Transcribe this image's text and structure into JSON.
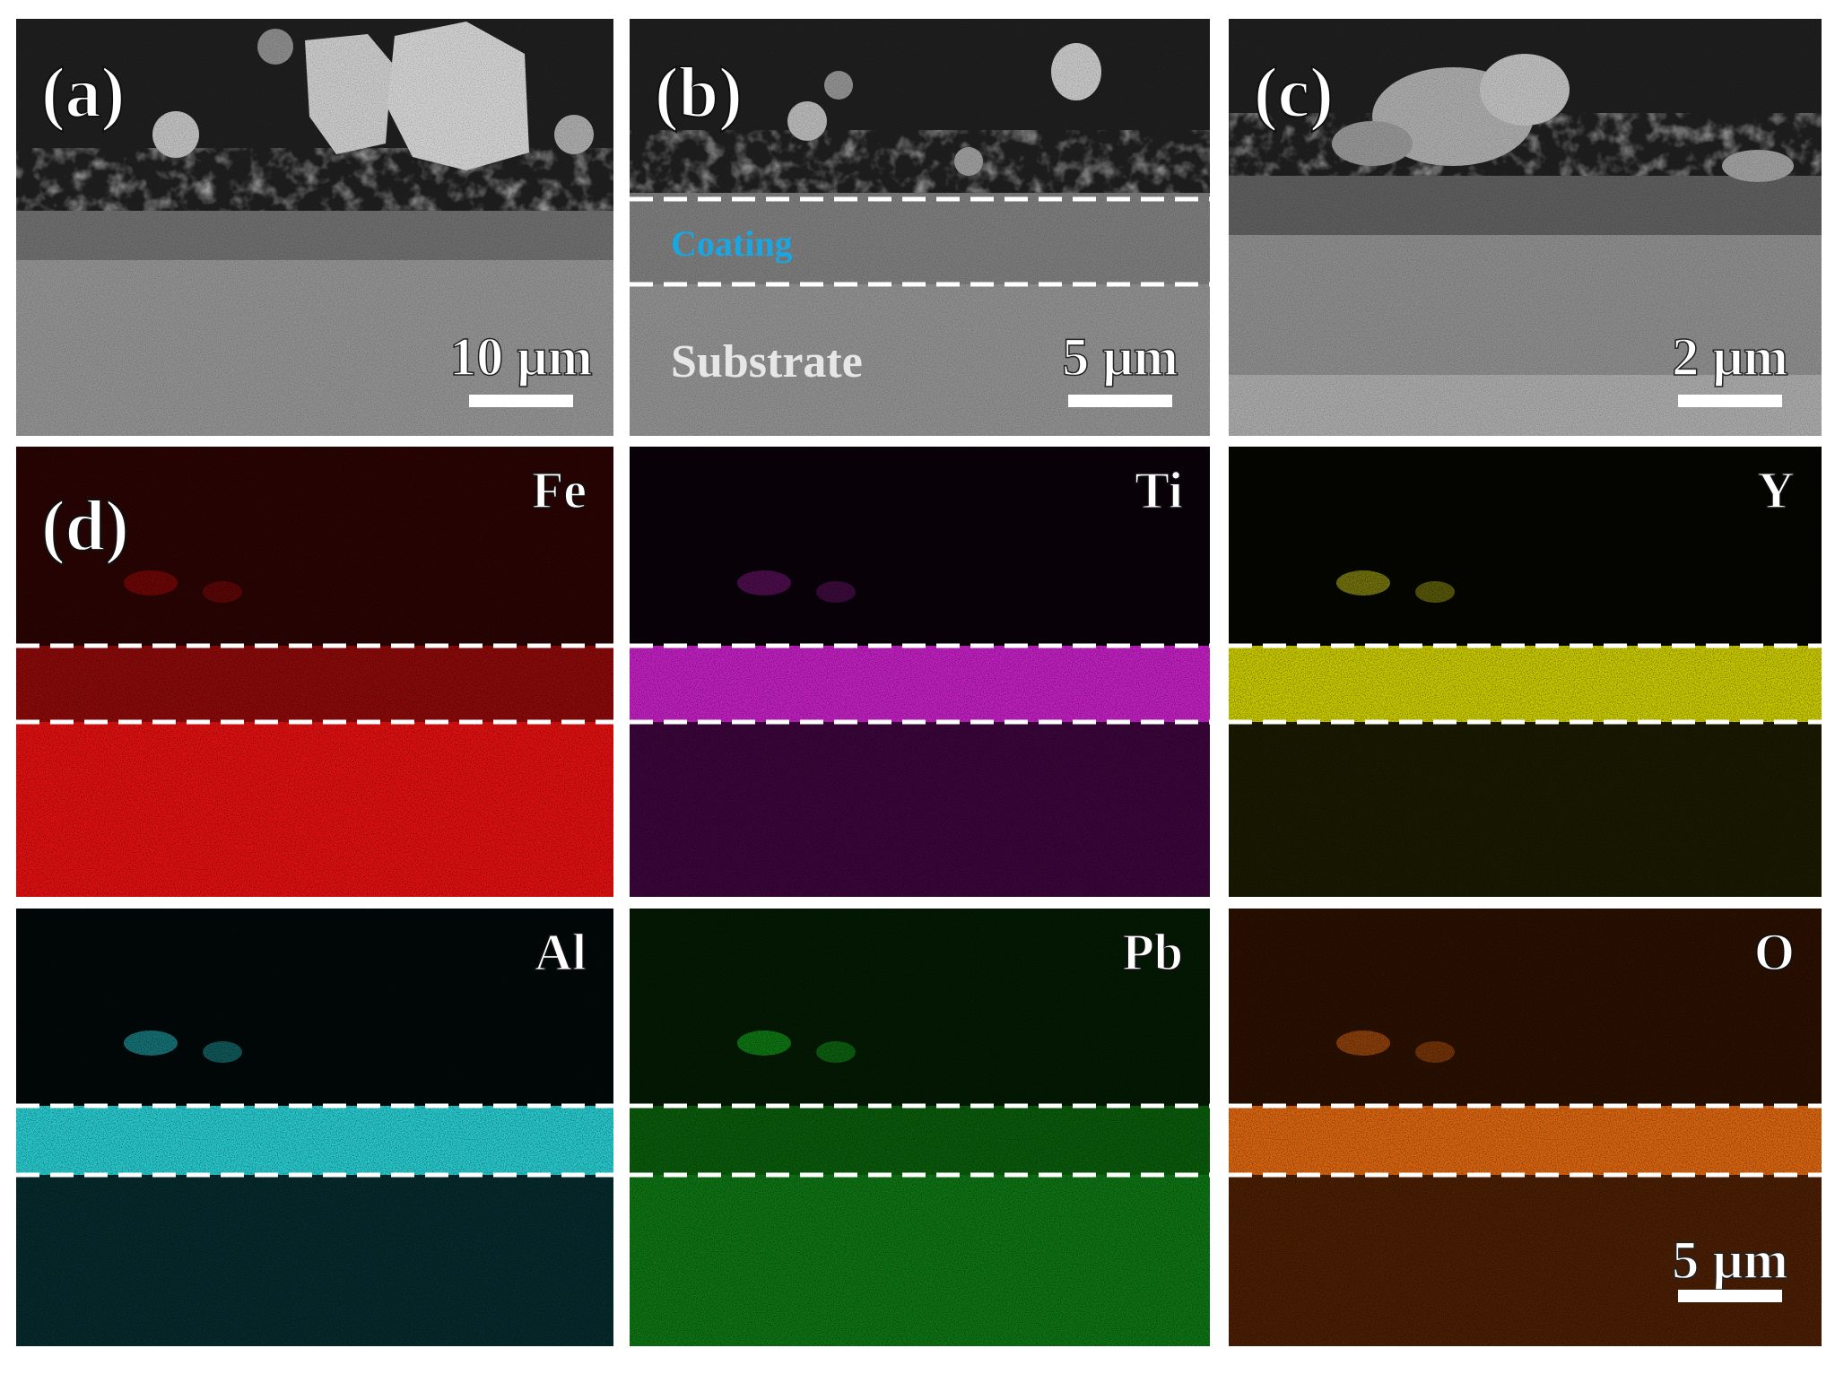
{
  "panels": [
    {
      "label": "(a)",
      "scale_bar": "10 µm"
    },
    {
      "label": "(b)",
      "scale_bar": "5 µm",
      "coating_label": "Coating",
      "substrate_label": "Substrate"
    },
    {
      "label": "(c)",
      "scale_bar": "2 µm"
    }
  ],
  "maps": {
    "label": "(d)",
    "elements": [
      "Fe",
      "Ti",
      "Y",
      "Al",
      "Pb",
      "O"
    ],
    "scale_bar": "5 µm"
  }
}
